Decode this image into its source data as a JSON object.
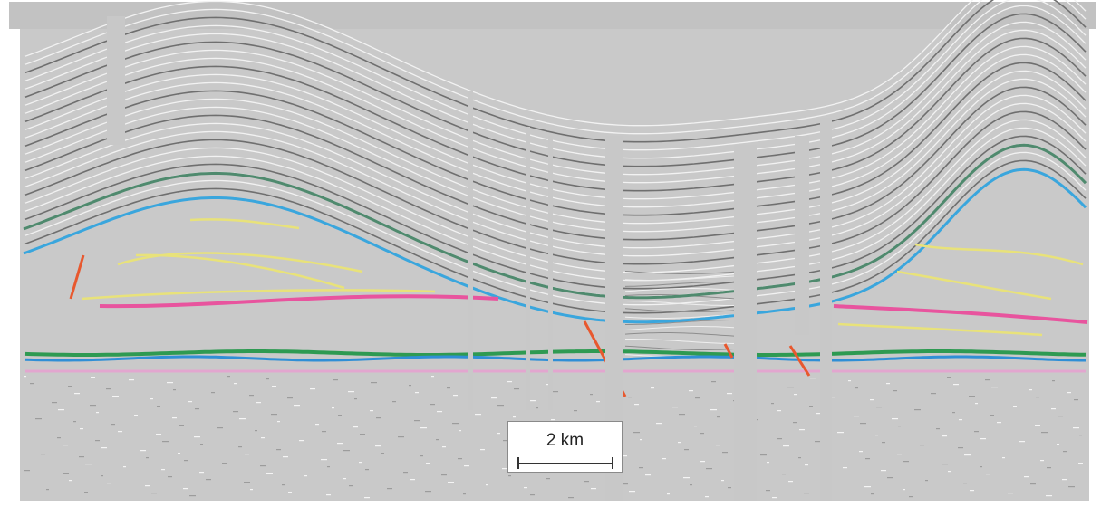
{
  "figure": {
    "scale_bar": {
      "label": "2 km"
    },
    "background_color": "#c9c9c9",
    "horizon_colors": {
      "upper_green": "#4f8a6e",
      "upper_blue": "#3aa6dd",
      "intra_yellow": "#e8e27a",
      "magenta": "#e8549e",
      "lower_green": "#2e9a52",
      "lower_blue": "#2f8fd6",
      "base_pink": "#e2a6cf",
      "fault_orange": "#e8582e"
    }
  }
}
